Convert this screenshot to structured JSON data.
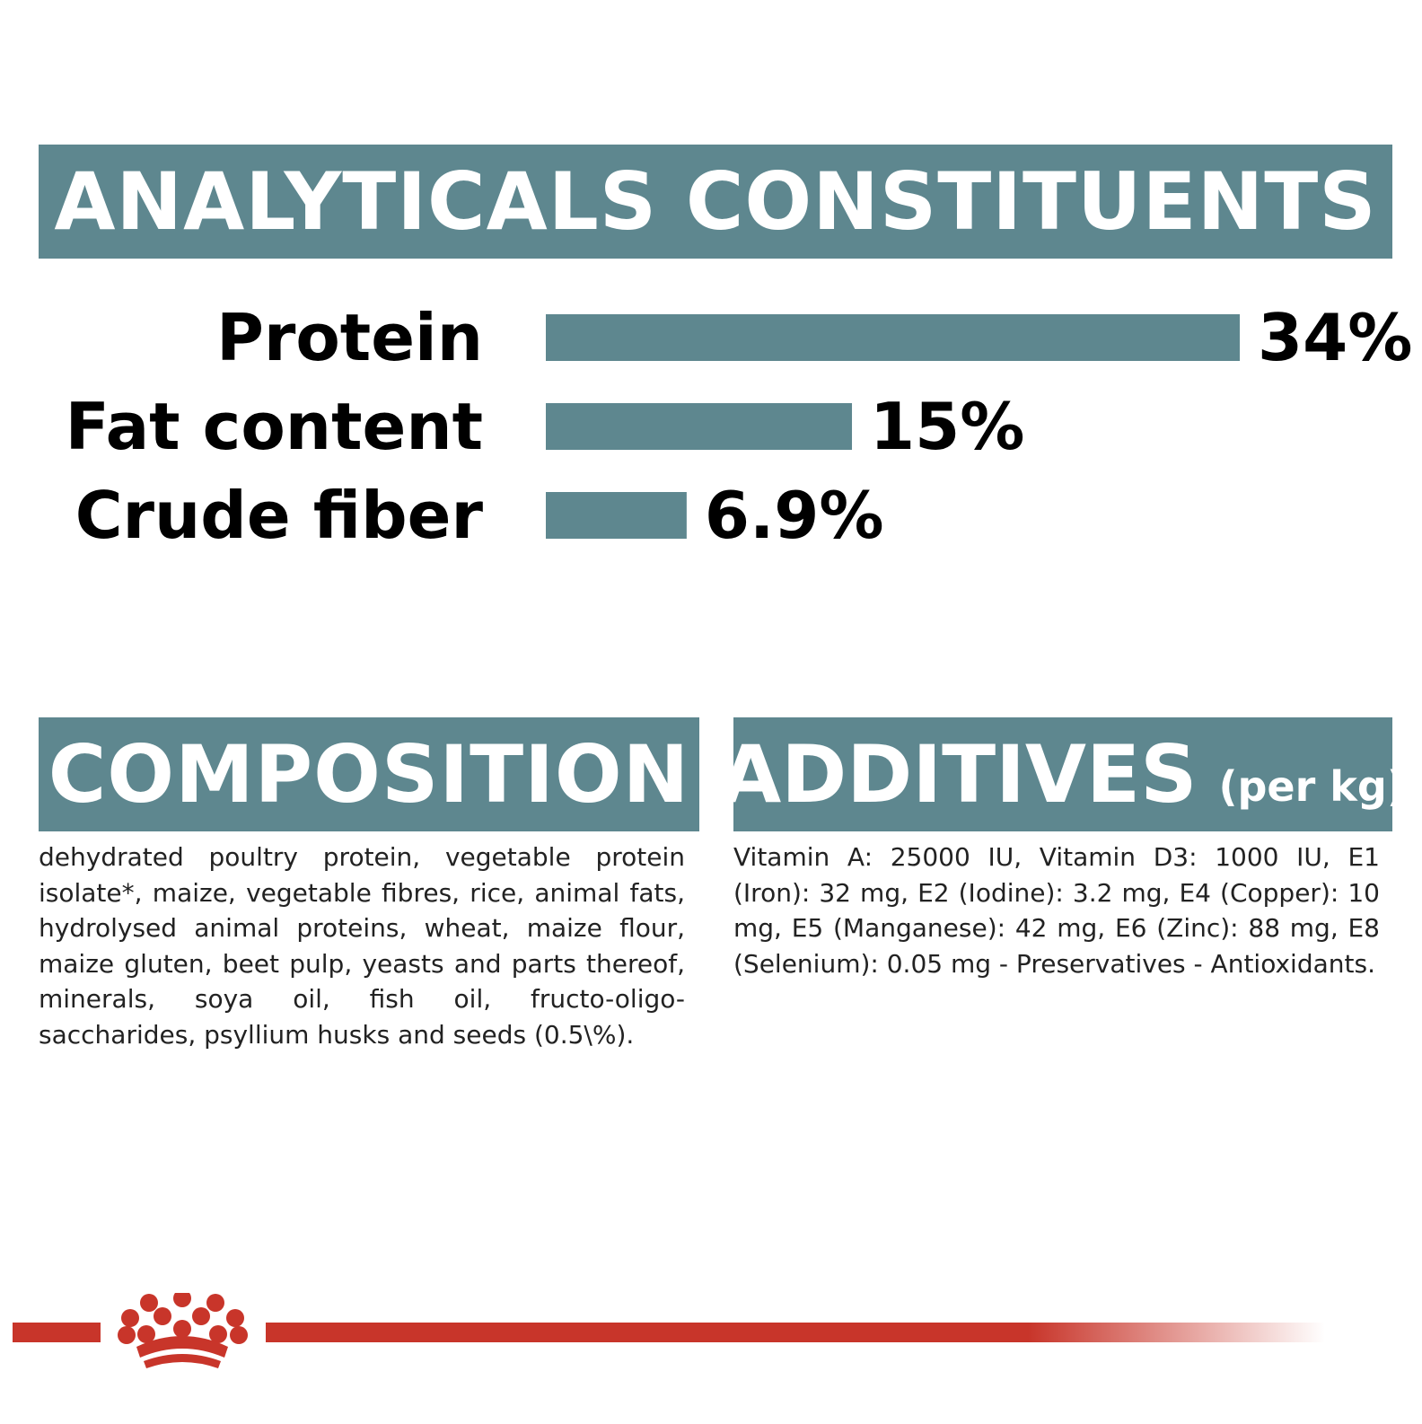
{
  "headers": {
    "analytical": "ANALYTICALS CONSTITUENTS",
    "composition": "COMPOSITION",
    "additives": "ADDITIVES",
    "additives_unit": "(per kg)"
  },
  "chart_data": {
    "type": "bar",
    "orientation": "horizontal",
    "categories": [
      "Protein",
      "Fat content",
      "Crude fiber"
    ],
    "values": [
      34,
      15,
      6.9
    ],
    "value_labels": [
      "34%",
      "15%",
      "6.9%"
    ],
    "unit": "%",
    "xlim": [
      0,
      34
    ],
    "grid": false,
    "color": "#5e878f"
  },
  "composition_text": "dehydrated poultry protein, vegetable protein isolate*, maize, vegetable fibres, rice, animal fats, hydrolysed animal proteins, wheat, maize flour, maize gluten, beet pulp, yeasts and parts thereof, minerals, soya oil, fish oil, fructo-oligo-saccharides, psyllium husks and seeds (0.5\\%).",
  "additives_text": "Vitamin A: 25000 IU, Vitamin D3: 1000 IU, E1 (Iron): 32 mg, E2 (Iodine): 3.2 mg, E4 (Copper): 10 mg, E5 (Manganese): 42 mg, E6 (Zinc): 88 mg, E8 (Selenium): 0.05 mg - Preservatives - Antioxidants.",
  "colors": {
    "banner": "#5e878f",
    "brand_red": "#c8352a",
    "text": "#222222"
  },
  "icons": {
    "brand": "royal-canin-crown-icon"
  }
}
